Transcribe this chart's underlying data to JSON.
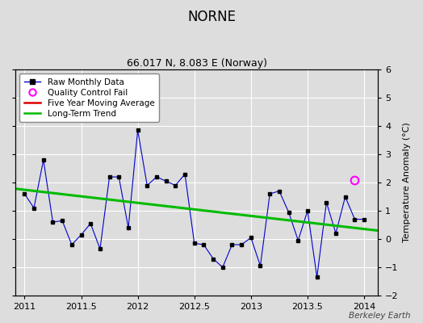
{
  "title": "NORNE",
  "subtitle": "66.017 N, 8.083 E (Norway)",
  "ylabel": "Temperature Anomaly (°C)",
  "watermark": "Berkeley Earth",
  "xlim": [
    2010.92,
    2014.12
  ],
  "ylim": [
    -2,
    6
  ],
  "yticks": [
    -2,
    -1,
    0,
    1,
    2,
    3,
    4,
    5,
    6
  ],
  "xticks": [
    2011,
    2011.5,
    2012,
    2012.5,
    2013,
    2013.5,
    2014
  ],
  "xticklabels": [
    "2011",
    "2011.5",
    "2012",
    "2012.5",
    "2013",
    "2013.5",
    "2014"
  ],
  "background_color": "#dddddd",
  "plot_bg_color": "#dddddd",
  "grid_color": "#ffffff",
  "raw_color": "#0000cc",
  "raw_marker_color": "#000000",
  "trend_color": "#00bb00",
  "mavg_color": "#dd0000",
  "qc_color": "#ff00ff",
  "raw_x": [
    2011.0,
    2011.083,
    2011.167,
    2011.25,
    2011.333,
    2011.417,
    2011.5,
    2011.583,
    2011.667,
    2011.75,
    2011.833,
    2011.917,
    2012.0,
    2012.083,
    2012.167,
    2012.25,
    2012.333,
    2012.417,
    2012.5,
    2012.583,
    2012.667,
    2012.75,
    2012.833,
    2012.917,
    2013.0,
    2013.083,
    2013.167,
    2013.25,
    2013.333,
    2013.417,
    2013.5,
    2013.583,
    2013.667,
    2013.75,
    2013.833,
    2013.917,
    2014.0
  ],
  "raw_y": [
    1.6,
    1.1,
    2.8,
    0.6,
    0.65,
    -0.2,
    0.15,
    0.55,
    -0.35,
    2.2,
    2.2,
    0.4,
    3.85,
    1.9,
    2.2,
    2.05,
    1.9,
    2.3,
    -0.15,
    -0.2,
    -0.7,
    -1.0,
    -0.2,
    -0.2,
    0.05,
    -0.95,
    1.6,
    1.7,
    0.95,
    -0.05,
    1.0,
    -1.35,
    1.3,
    0.2,
    1.5,
    0.7,
    0.7
  ],
  "trend_x": [
    2010.92,
    2014.12
  ],
  "trend_y": [
    1.78,
    0.3
  ],
  "qc_x": [
    2013.917
  ],
  "qc_y": [
    2.1
  ],
  "title_fontsize": 12,
  "subtitle_fontsize": 9,
  "tick_labelsize": 8,
  "ylabel_fontsize": 8,
  "legend_fontsize": 7.5
}
